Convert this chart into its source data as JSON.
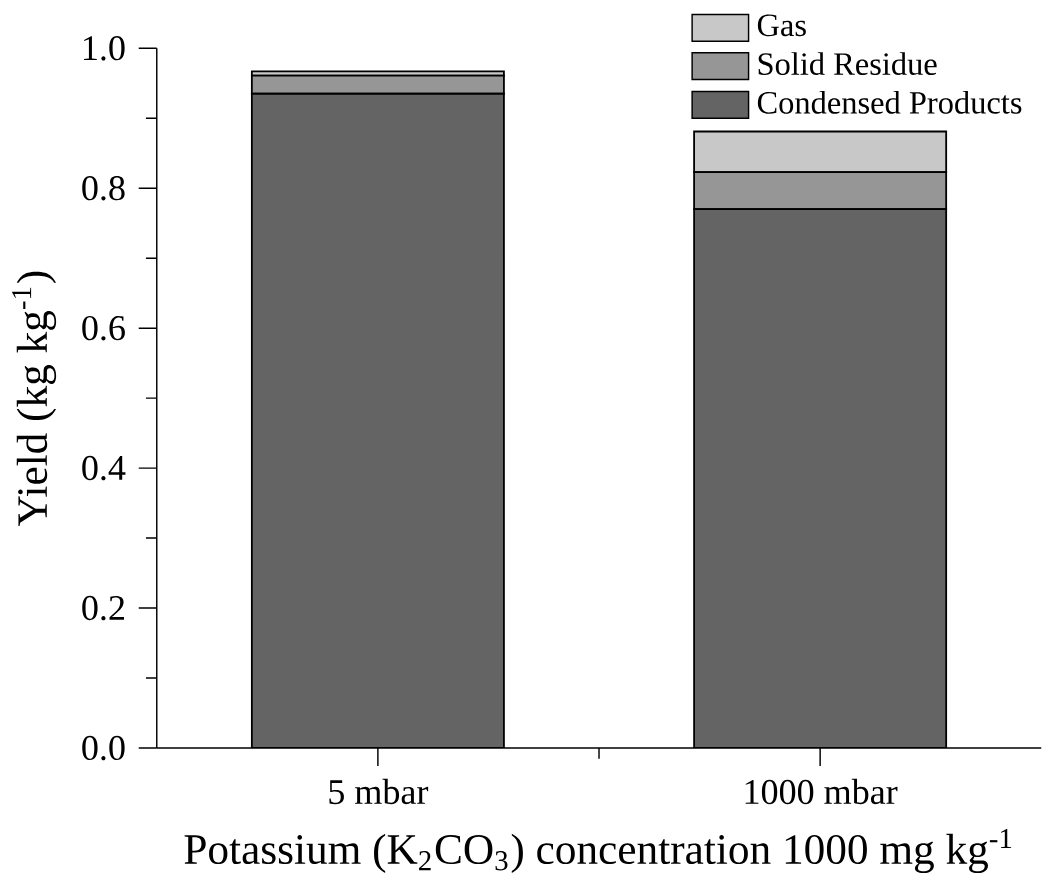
{
  "chart_data": {
    "type": "bar",
    "stacked": true,
    "xlabel": "Potassium (K$_{2}$CO$_{3}$) concentration 1000 mg kg$^{-1}$",
    "ylabel": "Yield (kg kg$^{-1}$)",
    "categories": [
      "5 mbar",
      "1000 mbar"
    ],
    "series": [
      {
        "name": "Condensed Products",
        "color": "#646464",
        "values": [
          0.935,
          0.77
        ]
      },
      {
        "name": "Solid Residue",
        "color": "#969696",
        "values": [
          0.026,
          0.053
        ]
      },
      {
        "name": "Gas",
        "color": "#c8c8c8",
        "values": [
          0.006,
          0.058
        ]
      }
    ],
    "ylim": [
      0,
      1.0
    ],
    "yticks": [
      {
        "value": 0,
        "label": "0.0"
      },
      0.2,
      0.4,
      0.6,
      0.8,
      {
        "value": 1,
        "label": "1.0"
      }
    ],
    "legend": "top right",
    "grid": false
  }
}
